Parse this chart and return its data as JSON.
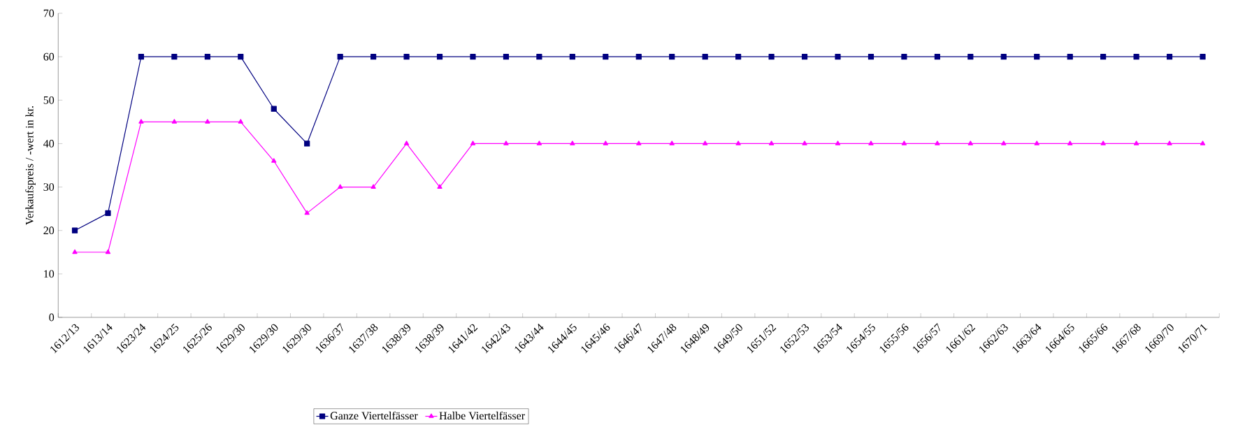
{
  "chart_data": {
    "type": "line",
    "ylabel": "Verkaufspreis / -wert in kr.",
    "categories": [
      "1612/13",
      "1613/14",
      "1623/24",
      "1624/25",
      "1625/26",
      "1629/30",
      "1629/30",
      "1629/30",
      "1636/37",
      "1637/38",
      "1638/39",
      "1638/39",
      "1641/42",
      "1642/43",
      "1643/44",
      "1644/45",
      "1645/46",
      "1646/47",
      "1647/48",
      "1648/49",
      "1649/50",
      "1651/52",
      "1652/53",
      "1653/54",
      "1654/55",
      "1655/56",
      "1656/57",
      "1661/62",
      "1662/63",
      "1663/64",
      "1664/65",
      "1665/66",
      "1667/68",
      "1669/70",
      "1670/71"
    ],
    "series": [
      {
        "name": "Ganze Viertelfässer",
        "color": "#000080",
        "marker": "square",
        "values": [
          20,
          24,
          60,
          60,
          60,
          60,
          48,
          40,
          60,
          60,
          60,
          60,
          60,
          60,
          60,
          60,
          60,
          60,
          60,
          60,
          60,
          60,
          60,
          60,
          60,
          60,
          60,
          60,
          60,
          60,
          60,
          60,
          60,
          60,
          60
        ]
      },
      {
        "name": "Halbe Viertelfässer",
        "color": "#ff00ff",
        "marker": "triangle",
        "values": [
          15,
          15,
          45,
          45,
          45,
          45,
          36,
          24,
          30,
          30,
          40,
          30,
          40,
          40,
          40,
          40,
          40,
          40,
          40,
          40,
          40,
          40,
          40,
          40,
          40,
          40,
          40,
          40,
          40,
          40,
          40,
          40,
          40,
          40,
          40
        ]
      }
    ],
    "ylim": [
      0,
      70
    ],
    "yticks": [
      0,
      10,
      20,
      30,
      40,
      50,
      60,
      70
    ],
    "grid": false,
    "legend": "bottom",
    "line_style": "solid"
  }
}
